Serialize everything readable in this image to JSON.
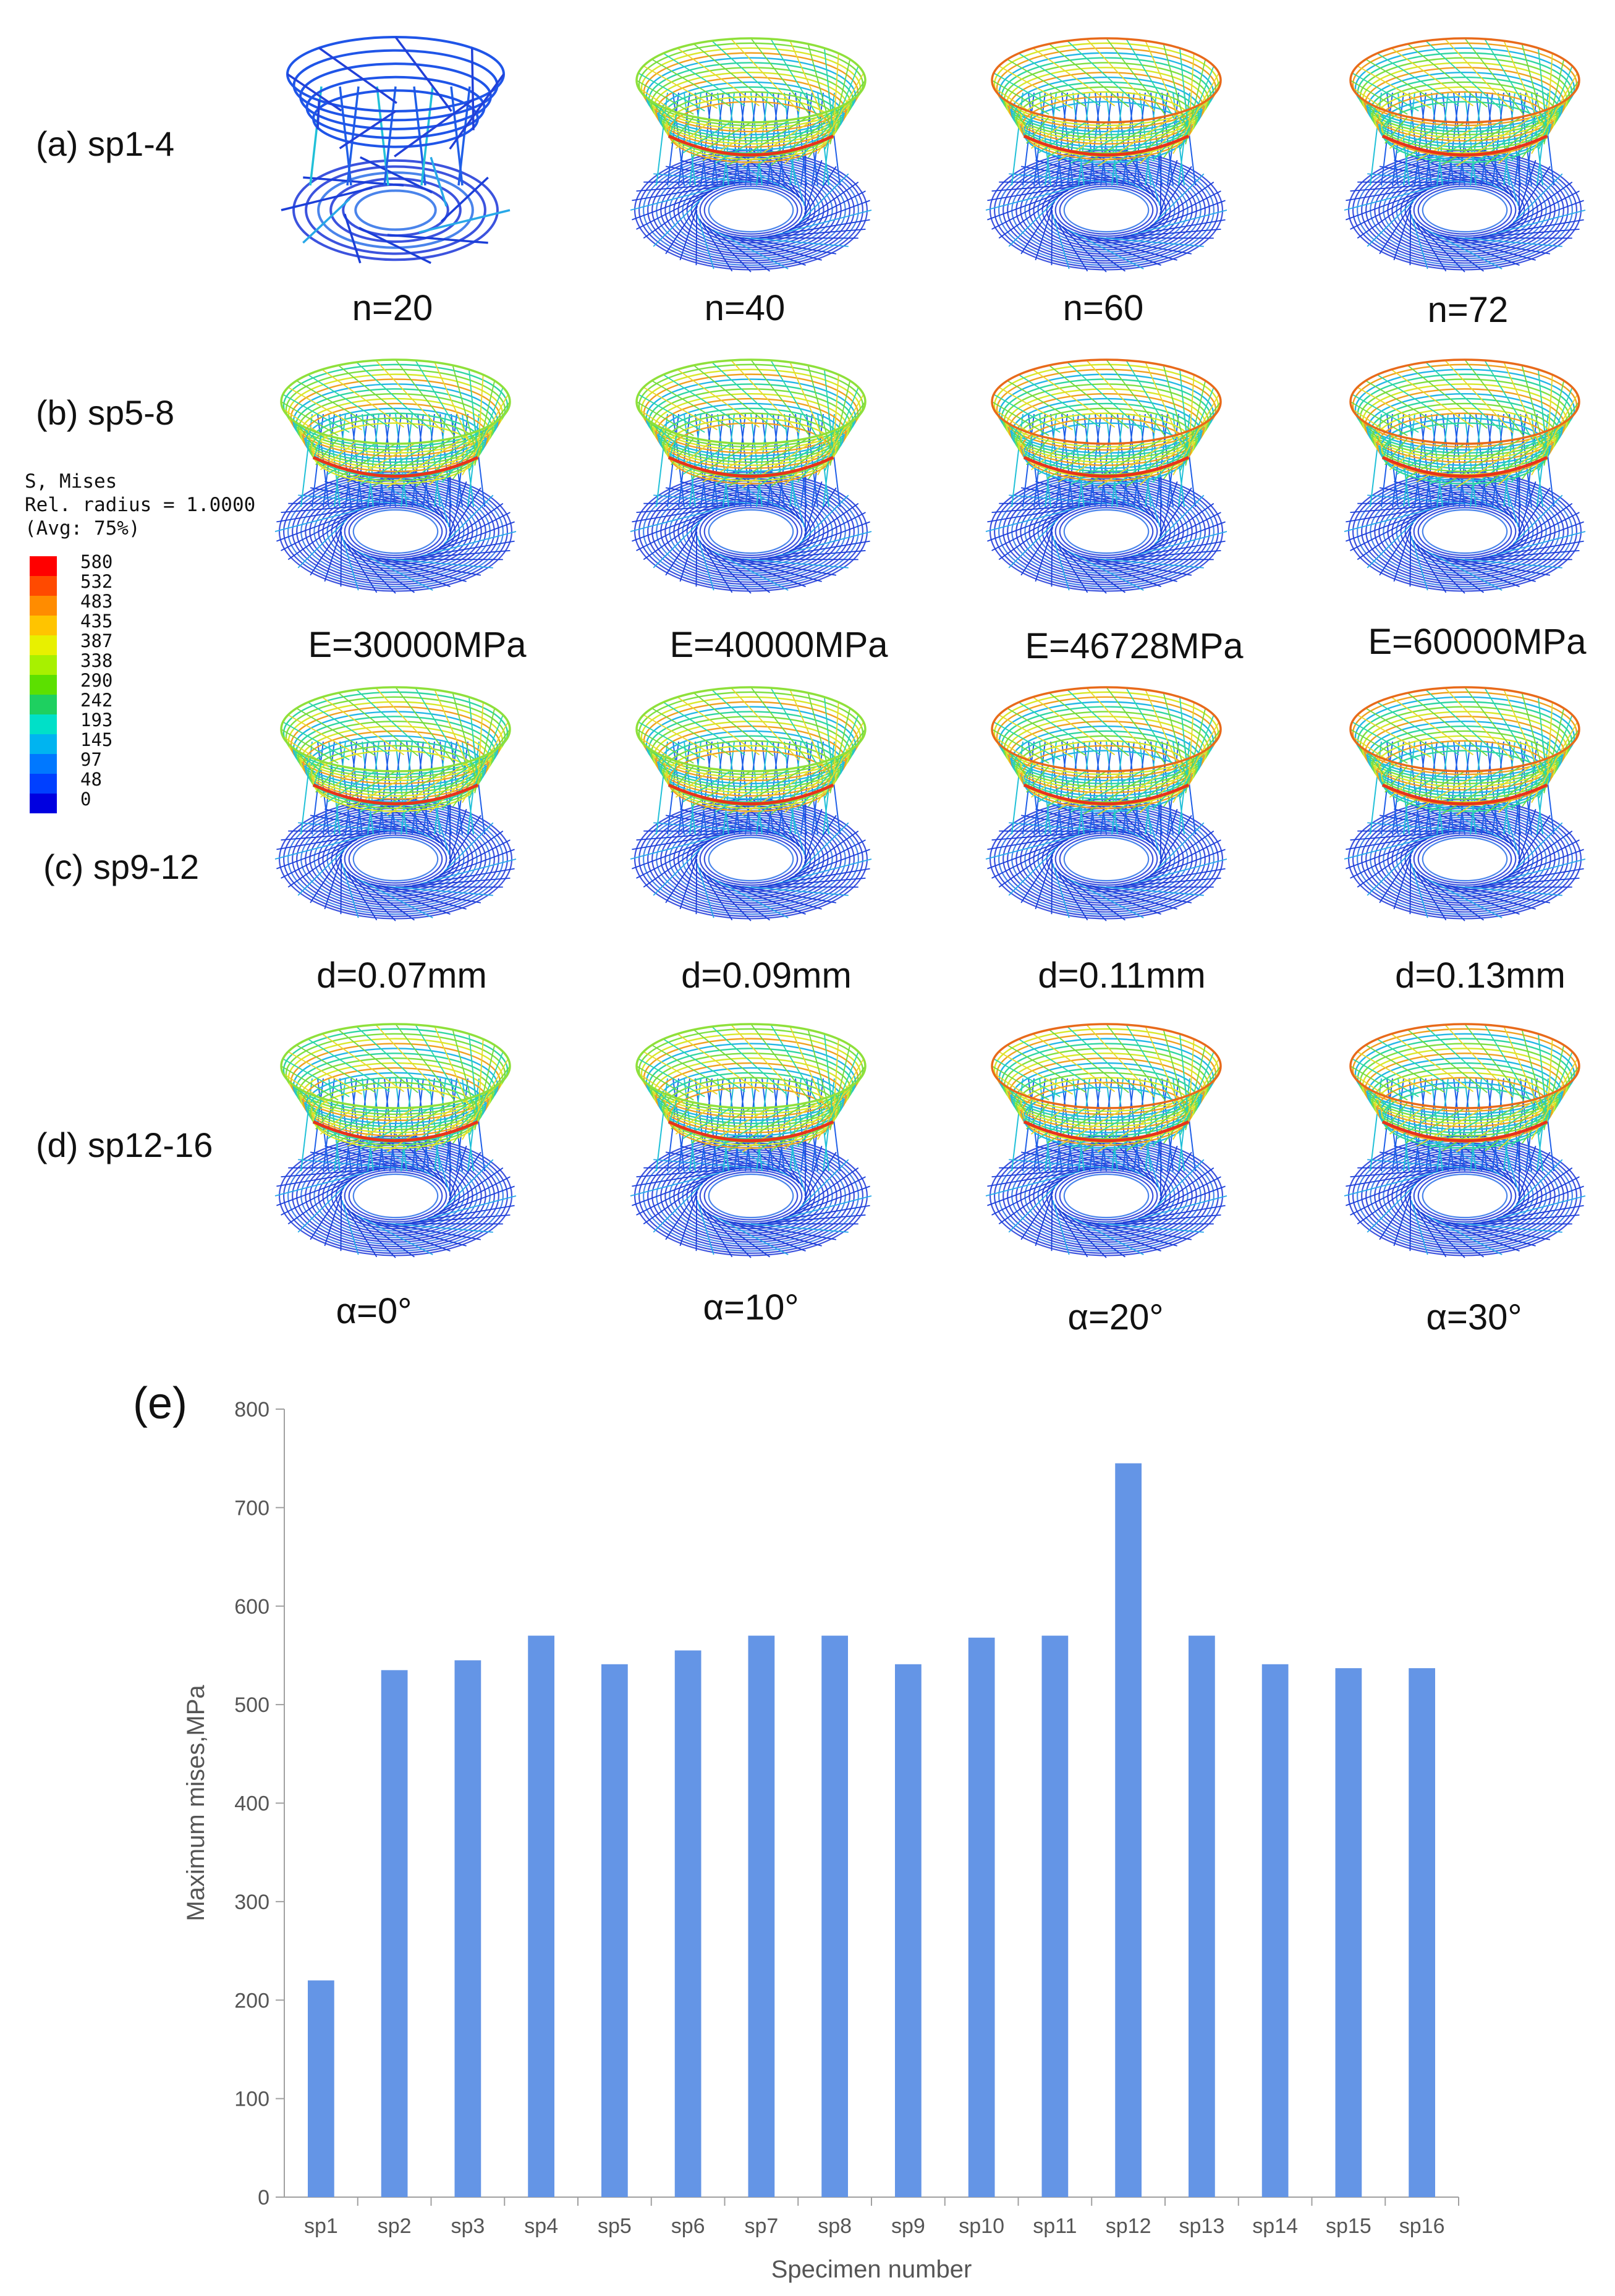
{
  "rows": [
    {
      "label": "(a) sp1-4",
      "cells": [
        "n=20",
        "n=40",
        "n=60",
        "n=72"
      ]
    },
    {
      "label": "(b) sp5-8",
      "cells": [
        "E=30000MPa",
        "E=40000MPa",
        "E=46728MPa",
        "E=60000MPa"
      ]
    },
    {
      "label": "(c) sp9-12",
      "cells": [
        "d=0.07mm",
        "d=0.09mm",
        "d=0.11mm",
        "d=0.13mm"
      ]
    },
    {
      "label": "(d) sp12-16",
      "cells": [
        "α=0°",
        "α=10°",
        "α=20°",
        "α=30°"
      ]
    }
  ],
  "legend": {
    "title_line1": "S, Mises",
    "title_line2": "Rel. radius = 1.0000",
    "title_line3": "(Avg: 75%)",
    "values": [
      "580",
      "532",
      "483",
      "435",
      "387",
      "338",
      "290",
      "242",
      "193",
      "145",
      "97",
      "48",
      "0"
    ],
    "colors": [
      "#ff0000",
      "#ff4a00",
      "#ff8c00",
      "#ffc400",
      "#e8f000",
      "#a8f000",
      "#5ce000",
      "#1ed060",
      "#00e0c8",
      "#00b4f0",
      "#0078ff",
      "#0040ff",
      "#0000e0"
    ]
  },
  "panel_e_label": "(e)",
  "chart_data": {
    "type": "bar",
    "categories": [
      "sp1",
      "sp2",
      "sp3",
      "sp4",
      "sp5",
      "sp6",
      "sp7",
      "sp8",
      "sp9",
      "sp10",
      "sp11",
      "sp12",
      "sp13",
      "sp14",
      "sp15",
      "sp16"
    ],
    "values": [
      220,
      535,
      545,
      570,
      541,
      555,
      570,
      570,
      541,
      568,
      570,
      745,
      570,
      541,
      537,
      537
    ],
    "title": "",
    "xlabel": "Specimen number",
    "ylabel": "Maximum mises,MPa",
    "ylim": [
      0,
      800
    ],
    "yticks": [
      "0",
      "100",
      "200",
      "300",
      "400",
      "500",
      "600",
      "700",
      "800"
    ],
    "bar_color": "#6495e6",
    "grid": false
  }
}
